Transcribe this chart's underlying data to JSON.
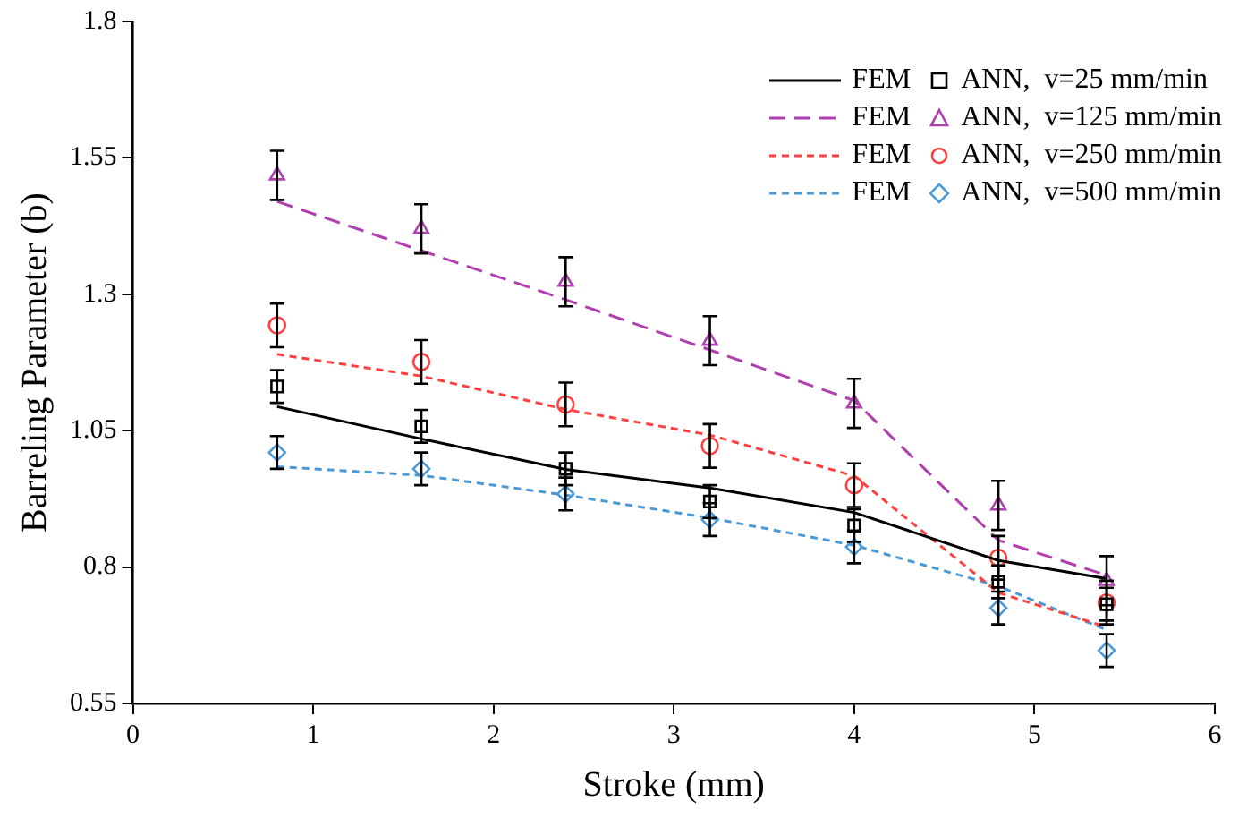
{
  "chart_data": {
    "type": "line",
    "xlabel": "Stroke (mm)",
    "ylabel": "Barreling Parameter (b)",
    "xlim": [
      0,
      6
    ],
    "xticks": [
      0,
      1,
      2,
      3,
      4,
      5,
      6
    ],
    "ylim": [
      0.55,
      1.8
    ],
    "yticks": [
      0.55,
      0.8,
      1.05,
      1.3,
      1.55,
      1.8
    ],
    "grid": false,
    "legend": "top right",
    "series": [
      {
        "name": "FEM",
        "type": "line",
        "color": "#000000",
        "line_style": "solid",
        "marker": "none",
        "x": [
          0.8,
          1.6,
          2.4,
          3.2,
          4.0,
          4.8,
          5.4
        ],
        "values": [
          1.094,
          1.035,
          0.979,
          0.945,
          0.9,
          0.812,
          0.779
        ]
      },
      {
        "name": "ANN,  v=25 mm/min",
        "type": "scatter",
        "color": "#000000",
        "marker": "square",
        "x": [
          0.8,
          1.6,
          2.4,
          3.2,
          4.0,
          4.8,
          5.4
        ],
        "values": [
          1.131,
          1.058,
          0.98,
          0.92,
          0.876,
          0.773,
          0.732
        ],
        "errors": [
          0.03,
          0.03,
          0.03,
          0.03,
          0.03,
          0.03,
          0.03
        ]
      },
      {
        "name": "FEM",
        "type": "line",
        "color": "#b040b0",
        "line_style": "dashed",
        "marker": "none",
        "x": [
          0.8,
          1.6,
          2.4,
          3.2,
          4.0,
          4.8,
          5.4
        ],
        "values": [
          1.47,
          1.38,
          1.29,
          1.198,
          1.105,
          0.849,
          0.785
        ]
      },
      {
        "name": "ANN,  v=125 mm/min",
        "type": "scatter",
        "color": "#b040b0",
        "marker": "triangle",
        "x": [
          0.8,
          1.6,
          2.4,
          3.2,
          4.0,
          4.8,
          5.4
        ],
        "values": [
          1.518,
          1.42,
          1.323,
          1.215,
          1.1,
          0.913,
          0.775
        ],
        "errors": [
          0.045,
          0.045,
          0.045,
          0.045,
          0.045,
          0.045,
          0.045
        ]
      },
      {
        "name": "FEM",
        "type": "line",
        "color": "#ff4040",
        "line_style": "dotted",
        "marker": "none",
        "x": [
          0.8,
          1.6,
          2.4,
          3.2,
          4.0,
          4.8,
          5.4
        ],
        "values": [
          1.19,
          1.15,
          1.089,
          1.042,
          0.967,
          0.753,
          0.69
        ]
      },
      {
        "name": "ANN,  v=250 mm/min",
        "type": "scatter",
        "color": "#ff4040",
        "marker": "circle",
        "x": [
          0.8,
          1.6,
          2.4,
          3.2,
          4.0,
          4.8,
          5.4
        ],
        "values": [
          1.243,
          1.176,
          1.098,
          1.022,
          0.95,
          0.817,
          0.735
        ],
        "errors": [
          0.04,
          0.04,
          0.04,
          0.04,
          0.04,
          0.04,
          0.04
        ]
      },
      {
        "name": "FEM",
        "type": "line",
        "color": "#4a9ad8",
        "line_style": "dotted",
        "marker": "none",
        "x": [
          0.8,
          1.6,
          2.4,
          3.2,
          4.0,
          4.8,
          5.4
        ],
        "values": [
          0.984,
          0.968,
          0.932,
          0.89,
          0.84,
          0.765,
          0.685
        ]
      },
      {
        "name": "ANN,  v=500 mm/min",
        "type": "scatter",
        "color": "#4a9ad8",
        "marker": "diamond",
        "x": [
          0.8,
          1.6,
          2.4,
          3.2,
          4.0,
          4.8,
          5.4
        ],
        "values": [
          1.01,
          0.98,
          0.934,
          0.887,
          0.837,
          0.725,
          0.647
        ],
        "errors": [
          0.03,
          0.03,
          0.03,
          0.03,
          0.03,
          0.03,
          0.03
        ]
      }
    ]
  }
}
